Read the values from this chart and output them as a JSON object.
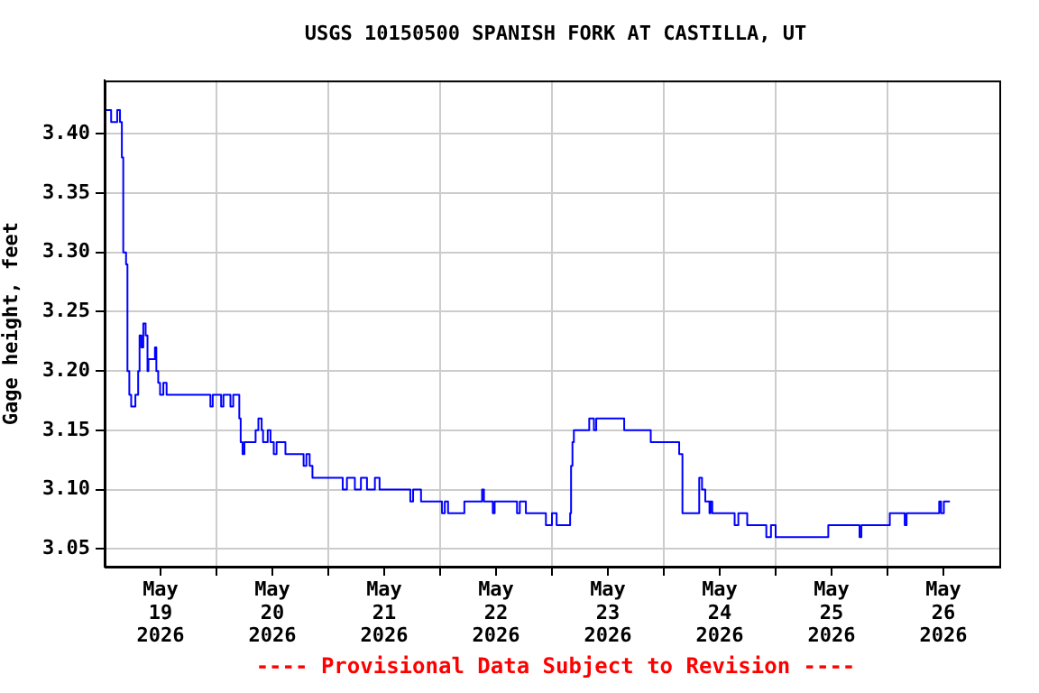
{
  "chart_data": {
    "type": "step",
    "title": "USGS 10150500 SPANISH FORK AT CASTILLA, UT",
    "ylabel": "Gage height, feet",
    "annotations": [
      "---- Provisional Data Subject to Revision ----"
    ],
    "xlim": [
      "2026-05-19",
      "2026-05-27"
    ],
    "xticks": [
      {
        "value": "2026-05-19T12:00",
        "label": "May\n19\n2026"
      },
      {
        "value": "2026-05-20",
        "label": null
      },
      {
        "value": "2026-05-20T12:00",
        "label": "May\n20\n2026"
      },
      {
        "value": "2026-05-21",
        "label": null
      },
      {
        "value": "2026-05-21T12:00",
        "label": "May\n21\n2026"
      },
      {
        "value": "2026-05-22",
        "label": null
      },
      {
        "value": "2026-05-22T12:00",
        "label": "May\n22\n2026"
      },
      {
        "value": "2026-05-23",
        "label": null
      },
      {
        "value": "2026-05-23T12:00",
        "label": "May\n23\n2026"
      },
      {
        "value": "2026-05-24",
        "label": null
      },
      {
        "value": "2026-05-24T12:00",
        "label": "May\n24\n2026"
      },
      {
        "value": "2026-05-25",
        "label": null
      },
      {
        "value": "2026-05-25T12:00",
        "label": "May\n25\n2026"
      },
      {
        "value": "2026-05-26",
        "label": null
      },
      {
        "value": "2026-05-26T12:00",
        "label": "May\n26\n2026"
      }
    ],
    "ylim": [
      3.035,
      3.445
    ],
    "yticks": [
      {
        "value": 3.05,
        "label": "3.05"
      },
      {
        "value": 3.1,
        "label": "3.10"
      },
      {
        "value": 3.15,
        "label": "3.15"
      },
      {
        "value": 3.2,
        "label": "3.20"
      },
      {
        "value": 3.25,
        "label": "3.25"
      },
      {
        "value": 3.3,
        "label": "3.30"
      },
      {
        "value": 3.35,
        "label": "3.35"
      },
      {
        "value": 3.4,
        "label": "3.40"
      }
    ],
    "grid": true,
    "series": [
      {
        "color": "#0000ff",
        "x": [
          "2026-05-19T00:00",
          "2026-05-19T01:24",
          "2026-05-19T02:42",
          "2026-05-19T03:18",
          "2026-05-19T03:42",
          "2026-05-19T04:00",
          "2026-05-19T04:36",
          "2026-05-19T04:54",
          "2026-05-19T05:18",
          "2026-05-19T05:42",
          "2026-05-19T06:36",
          "2026-05-19T07:12",
          "2026-05-19T07:30",
          "2026-05-19T07:54",
          "2026-05-19T08:18",
          "2026-05-19T08:48",
          "2026-05-19T09:12",
          "2026-05-19T09:24",
          "2026-05-19T10:48",
          "2026-05-19T11:06",
          "2026-05-19T11:30",
          "2026-05-19T11:54",
          "2026-05-19T12:36",
          "2026-05-19T13:18",
          "2026-05-19T22:42",
          "2026-05-19T23:12",
          "2026-05-20T01:00",
          "2026-05-20T01:30",
          "2026-05-20T03:00",
          "2026-05-20T03:36",
          "2026-05-20T04:54",
          "2026-05-20T05:12",
          "2026-05-20T05:36",
          "2026-05-20T06:00",
          "2026-05-20T08:24",
          "2026-05-20T09:00",
          "2026-05-20T09:42",
          "2026-05-20T10:00",
          "2026-05-20T11:00",
          "2026-05-20T11:36",
          "2026-05-20T12:18",
          "2026-05-20T12:54",
          "2026-05-20T14:48",
          "2026-05-20T18:42",
          "2026-05-20T19:18",
          "2026-05-20T20:00",
          "2026-05-20T20:36",
          "2026-05-21T03:06",
          "2026-05-21T04:00",
          "2026-05-21T05:42",
          "2026-05-21T07:00",
          "2026-05-21T08:18",
          "2026-05-21T10:00",
          "2026-05-21T11:00",
          "2026-05-21T17:36",
          "2026-05-21T18:12",
          "2026-05-21T19:54",
          "2026-05-22T00:24",
          "2026-05-22T01:00",
          "2026-05-22T01:42",
          "2026-05-22T05:12",
          "2026-05-22T09:00",
          "2026-05-22T09:24",
          "2026-05-22T11:18",
          "2026-05-22T11:42",
          "2026-05-22T16:30",
          "2026-05-22T17:06",
          "2026-05-22T18:24",
          "2026-05-22T22:42",
          "2026-05-23T00:00",
          "2026-05-23T01:00",
          "2026-05-23T03:54",
          "2026-05-23T04:06",
          "2026-05-23T04:24",
          "2026-05-23T04:42",
          "2026-05-23T08:00",
          "2026-05-23T09:00",
          "2026-05-23T09:30",
          "2026-05-23T15:30",
          "2026-05-23T21:12",
          "2026-05-24T03:18",
          "2026-05-24T04:00",
          "2026-05-24T07:36",
          "2026-05-24T08:12",
          "2026-05-24T08:54",
          "2026-05-24T09:48",
          "2026-05-24T10:00",
          "2026-05-24T10:24",
          "2026-05-24T15:12",
          "2026-05-24T16:00",
          "2026-05-24T17:54",
          "2026-05-24T22:00",
          "2026-05-24T23:00",
          "2026-05-25T00:00",
          "2026-05-25T11:18",
          "2026-05-25T18:00",
          "2026-05-25T18:24",
          "2026-05-26T00:30",
          "2026-05-26T03:42",
          "2026-05-26T04:06",
          "2026-05-26T11:06",
          "2026-05-26T11:30",
          "2026-05-26T12:06",
          "2026-05-26T13:24"
        ],
        "values": [
          3.42,
          3.41,
          3.42,
          3.41,
          3.38,
          3.3,
          3.29,
          3.2,
          3.18,
          3.17,
          3.18,
          3.2,
          3.23,
          3.22,
          3.24,
          3.23,
          3.2,
          3.21,
          3.22,
          3.2,
          3.19,
          3.18,
          3.19,
          3.18,
          3.17,
          3.18,
          3.17,
          3.18,
          3.17,
          3.18,
          3.16,
          3.14,
          3.13,
          3.14,
          3.15,
          3.16,
          3.15,
          3.14,
          3.15,
          3.14,
          3.13,
          3.14,
          3.13,
          3.12,
          3.13,
          3.12,
          3.11,
          3.1,
          3.11,
          3.1,
          3.11,
          3.1,
          3.11,
          3.1,
          3.09,
          3.1,
          3.09,
          3.08,
          3.09,
          3.08,
          3.09,
          3.1,
          3.09,
          3.08,
          3.09,
          3.08,
          3.09,
          3.08,
          3.07,
          3.08,
          3.07,
          3.08,
          3.12,
          3.14,
          3.15,
          3.16,
          3.15,
          3.16,
          3.15,
          3.14,
          3.13,
          3.08,
          3.11,
          3.1,
          3.09,
          3.08,
          3.09,
          3.08,
          3.07,
          3.08,
          3.07,
          3.06,
          3.07,
          3.06,
          3.07,
          3.06,
          3.07,
          3.08,
          3.07,
          3.08,
          3.09,
          3.08,
          3.09,
          3.09
        ]
      }
    ]
  }
}
